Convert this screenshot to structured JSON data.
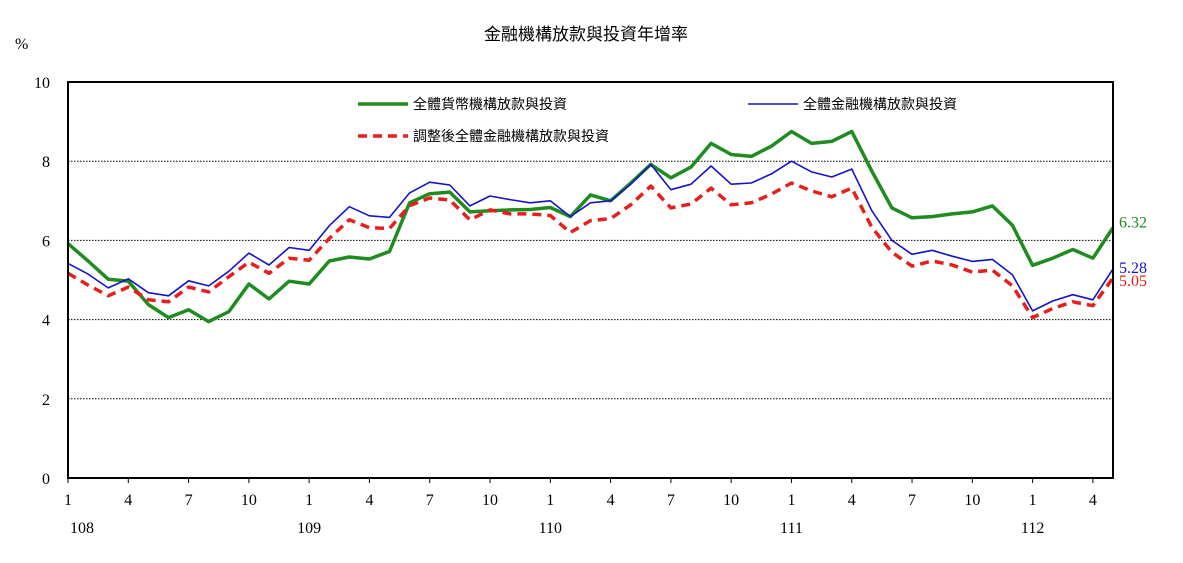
{
  "chart_data": {
    "type": "line",
    "title": "金融機構放款與投資年增率",
    "unit_label": "%",
    "ylim": [
      0,
      10
    ],
    "yticks": [
      0,
      2,
      4,
      6,
      8,
      10
    ],
    "grid": "horizontal dotted",
    "legend_position": "top",
    "x_tick_labels": [
      "1",
      "4",
      "7",
      "10",
      "1",
      "4",
      "7",
      "10",
      "1",
      "4",
      "7",
      "10",
      "1",
      "4",
      "7",
      "10",
      "1",
      "4"
    ],
    "year_labels": [
      "108",
      "109",
      "110",
      "111",
      "112"
    ],
    "series": [
      {
        "name": "全體貨幣機構放款與投資",
        "color": "#1e8c1e",
        "style": "solid-thick",
        "end_label": "6.32",
        "values": [
          5.92,
          5.48,
          5.02,
          4.97,
          4.38,
          4.05,
          4.25,
          3.95,
          4.2,
          4.9,
          4.52,
          4.97,
          4.9,
          5.48,
          5.58,
          5.53,
          5.72,
          6.95,
          7.18,
          7.22,
          6.72,
          6.75,
          6.77,
          6.78,
          6.83,
          6.6,
          7.15,
          7.0,
          7.45,
          7.92,
          7.58,
          7.85,
          8.45,
          8.17,
          8.12,
          8.38,
          8.75,
          8.45,
          8.5,
          8.75,
          7.75,
          6.82,
          6.57,
          6.6,
          6.67,
          6.72,
          6.87,
          6.38,
          5.37,
          5.55,
          5.77,
          5.55,
          6.32
        ]
      },
      {
        "name": "全體金融機構放款與投資",
        "color": "#1414c8",
        "style": "solid-thin",
        "end_label": "5.28",
        "values": [
          5.42,
          5.15,
          4.8,
          5.03,
          4.68,
          4.6,
          4.98,
          4.85,
          5.22,
          5.68,
          5.38,
          5.82,
          5.75,
          6.37,
          6.85,
          6.62,
          6.58,
          7.2,
          7.47,
          7.4,
          6.87,
          7.12,
          7.03,
          6.95,
          7.0,
          6.6,
          6.95,
          7.0,
          7.42,
          7.92,
          7.28,
          7.42,
          7.88,
          7.42,
          7.45,
          7.68,
          8.0,
          7.73,
          7.6,
          7.8,
          6.75,
          6.0,
          5.65,
          5.75,
          5.6,
          5.47,
          5.52,
          5.13,
          4.22,
          4.47,
          4.63,
          4.5,
          5.28
        ]
      },
      {
        "name": "調整後全體金融機構放款與投資",
        "color": "#e61e1e",
        "style": "dashed",
        "end_label": "5.05",
        "values": [
          5.17,
          4.87,
          4.6,
          4.82,
          4.5,
          4.45,
          4.82,
          4.7,
          5.08,
          5.45,
          5.17,
          5.55,
          5.5,
          6.05,
          6.52,
          6.32,
          6.3,
          6.88,
          7.07,
          7.02,
          6.52,
          6.77,
          6.67,
          6.67,
          6.63,
          6.2,
          6.5,
          6.55,
          6.9,
          7.37,
          6.82,
          6.92,
          7.32,
          6.9,
          6.95,
          7.17,
          7.45,
          7.25,
          7.1,
          7.32,
          6.33,
          5.7,
          5.35,
          5.48,
          5.38,
          5.2,
          5.25,
          4.85,
          4.05,
          4.28,
          4.45,
          4.35,
          5.05
        ]
      }
    ]
  }
}
